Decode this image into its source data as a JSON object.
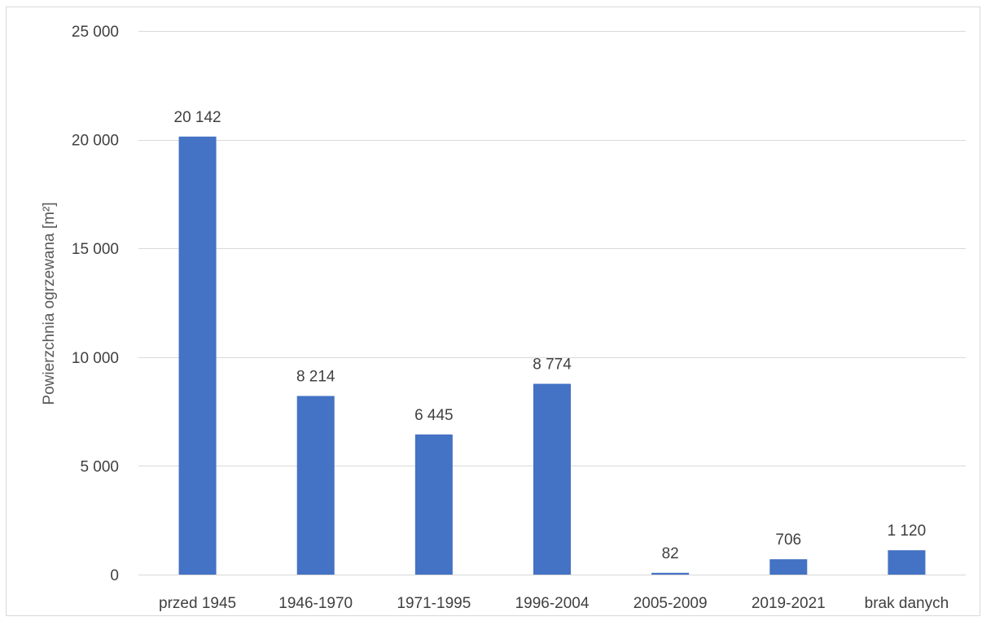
{
  "chart_data": {
    "type": "bar",
    "title": "",
    "xlabel": "",
    "ylabel": "Powierzchnia ogrzewana [m²]",
    "categories": [
      "przed 1945",
      "1946-1970",
      "1971-1995",
      "1996-2004",
      "2005-2009",
      "2019-2021",
      "brak danych"
    ],
    "values": [
      20142,
      8214,
      6445,
      8774,
      82,
      706,
      1120
    ],
    "value_labels": [
      "20 142",
      "8 214",
      "6 445",
      "8 774",
      "82",
      "706",
      "1 120"
    ],
    "ylim": [
      0,
      25000
    ],
    "yticks": [
      0,
      5000,
      10000,
      15000,
      20000,
      25000
    ],
    "ytick_labels": [
      "0",
      "5 000",
      "10 000",
      "15 000",
      "20 000",
      "25 000"
    ],
    "grid": true,
    "legend": "none",
    "colors": {
      "bar": "#4472C4",
      "grid": "#D9D9D9",
      "text": "#404040",
      "axis_label": "#595959"
    }
  }
}
